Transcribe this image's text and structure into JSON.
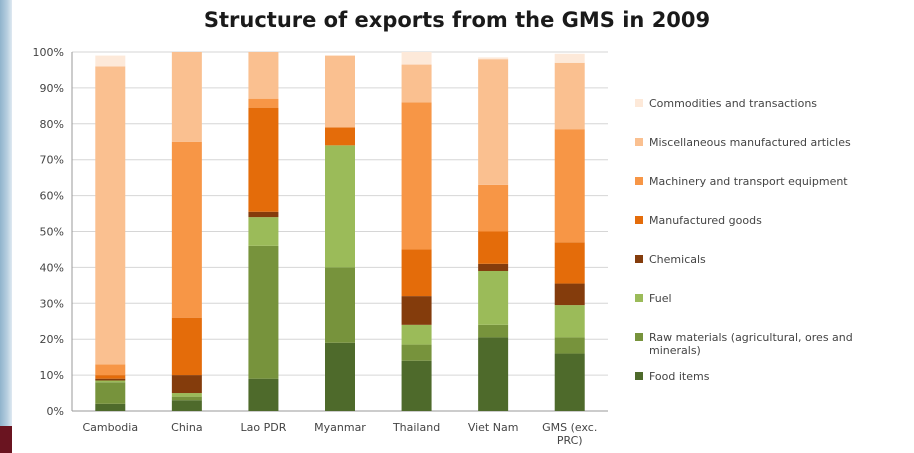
{
  "chart_data": {
    "type": "bar",
    "stacked": true,
    "title": "Structure of exports from the GMS in 2009",
    "categories": [
      "Cambodia",
      "China",
      "Lao PDR",
      "Myanmar",
      "Thailand",
      "Viet Nam",
      "GMS (exc. PRC)"
    ],
    "category_lines": [
      [
        "Cambodia"
      ],
      [
        "China"
      ],
      [
        "Lao PDR"
      ],
      [
        "Myanmar"
      ],
      [
        "Thailand"
      ],
      [
        "Viet Nam"
      ],
      [
        "GMS (exc.",
        "PRC)"
      ]
    ],
    "y_ticks": [
      "0%",
      "10%",
      "20%",
      "30%",
      "40%",
      "50%",
      "60%",
      "70%",
      "80%",
      "90%",
      "100%"
    ],
    "ylim": [
      0,
      100
    ],
    "grid": true,
    "legend_position": "right",
    "series": [
      {
        "name": "Food items",
        "color": "#4e6a2b",
        "values": [
          2,
          3,
          9,
          19,
          14,
          20.5,
          16
        ]
      },
      {
        "name": "Raw materials (agricultural, ores and minerals)",
        "name_lines": [
          "Raw materials (agricultural, ores and",
          "minerals)"
        ],
        "color": "#77933c",
        "values": [
          6,
          1,
          37,
          21,
          4.5,
          3.5,
          4.5
        ]
      },
      {
        "name": "Fuel",
        "color": "#9bbb59",
        "values": [
          0.5,
          1,
          8,
          34,
          5.5,
          15,
          9
        ]
      },
      {
        "name": "Chemicals",
        "color": "#843c0c",
        "values": [
          0.5,
          5,
          1.5,
          0,
          8,
          2,
          6
        ]
      },
      {
        "name": "Manufactured goods",
        "color": "#e46c0a",
        "values": [
          1,
          16,
          29,
          5,
          13,
          9,
          11.5
        ]
      },
      {
        "name": "Machinery and transport equipment",
        "color": "#f79646",
        "values": [
          3,
          49,
          2.5,
          0,
          41,
          13,
          31.5
        ]
      },
      {
        "name": "Miscellaneous manufactured articles",
        "color": "#fac090",
        "values": [
          83,
          25,
          13,
          20,
          10.5,
          35,
          18.5
        ]
      },
      {
        "name": "Commodities and transactions",
        "color": "#fde9d9",
        "values": [
          3,
          0,
          0,
          0,
          3.5,
          0.5,
          2.5
        ]
      }
    ]
  }
}
